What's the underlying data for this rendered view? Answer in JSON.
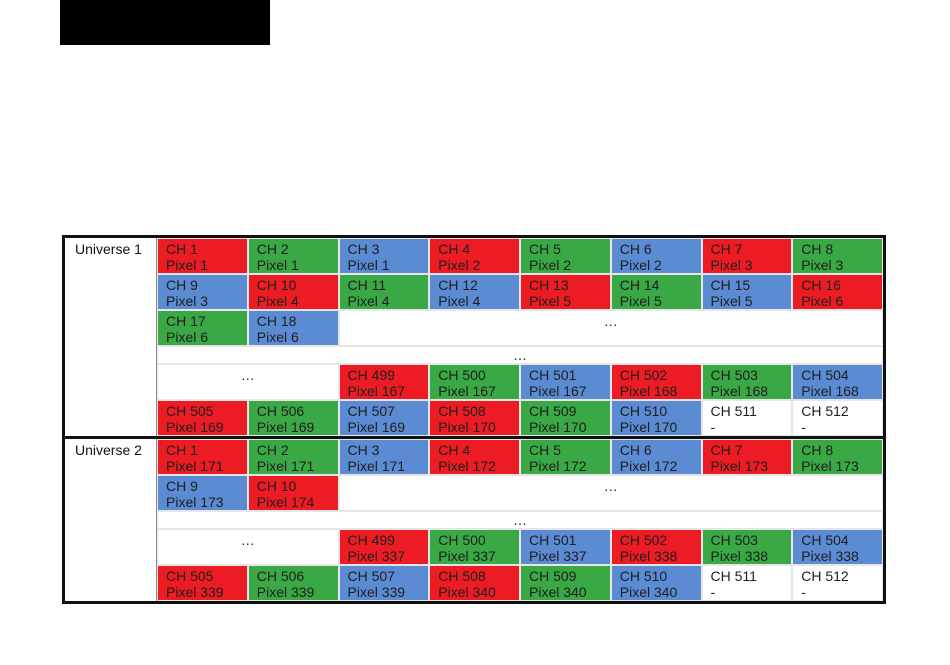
{
  "universes": [
    {
      "label": "Universe 1",
      "rows": [
        {
          "cells": [
            {
              "ch": "CH 1",
              "pixel": "Pixel 1",
              "color": "#ed1c24"
            },
            {
              "ch": "CH 2",
              "pixel": "Pixel 1",
              "color": "#39a845"
            },
            {
              "ch": "CH 3",
              "pixel": "Pixel 1",
              "color": "#5b8bd2"
            },
            {
              "ch": "CH 4",
              "pixel": "Pixel 2",
              "color": "#ed1c24"
            },
            {
              "ch": "CH 5",
              "pixel": "Pixel 2",
              "color": "#39a845"
            },
            {
              "ch": "CH 6",
              "pixel": "Pixel 2",
              "color": "#5b8bd2"
            },
            {
              "ch": "CH 7",
              "pixel": "Pixel 3",
              "color": "#ed1c24"
            },
            {
              "ch": "CH 8",
              "pixel": "Pixel 3",
              "color": "#39a845"
            }
          ]
        },
        {
          "cells": [
            {
              "ch": "CH 9",
              "pixel": "Pixel 3",
              "color": "#5b8bd2"
            },
            {
              "ch": "CH 10",
              "pixel": "Pixel 4",
              "color": "#ed1c24"
            },
            {
              "ch": "CH 11",
              "pixel": "Pixel 4",
              "color": "#39a845"
            },
            {
              "ch": "CH 12",
              "pixel": "Pixel 4",
              "color": "#5b8bd2"
            },
            {
              "ch": "CH 13",
              "pixel": "Pixel 5",
              "color": "#ed1c24"
            },
            {
              "ch": "CH 14",
              "pixel": "Pixel 5",
              "color": "#39a845"
            },
            {
              "ch": "CH 15",
              "pixel": "Pixel 5",
              "color": "#5b8bd2"
            },
            {
              "ch": "CH 16",
              "pixel": "Pixel 6",
              "color": "#ed1c24"
            }
          ]
        },
        {
          "cells": [
            {
              "ch": "CH 17",
              "pixel": "Pixel 6",
              "color": "#39a845"
            },
            {
              "ch": "CH 18",
              "pixel": "Pixel 6",
              "color": "#5b8bd2"
            },
            {
              "text": "…",
              "span": 6
            }
          ]
        },
        {
          "short": true,
          "cells": [
            {
              "text": "…",
              "span": 8
            }
          ]
        },
        {
          "cells": [
            {
              "text": "…",
              "span": 2
            },
            {
              "ch": "CH 499",
              "pixel": "Pixel 167",
              "color": "#ed1c24"
            },
            {
              "ch": "CH 500",
              "pixel": "Pixel 167",
              "color": "#39a845"
            },
            {
              "ch": "CH 501",
              "pixel": "Pixel 167",
              "color": "#5b8bd2"
            },
            {
              "ch": "CH 502",
              "pixel": "Pixel 168",
              "color": "#ed1c24"
            },
            {
              "ch": "CH 503",
              "pixel": "Pixel 168",
              "color": "#39a845"
            },
            {
              "ch": "CH 504",
              "pixel": "Pixel 168",
              "color": "#5b8bd2"
            }
          ]
        },
        {
          "cells": [
            {
              "ch": "CH 505",
              "pixel": "Pixel 169",
              "color": "#ed1c24"
            },
            {
              "ch": "CH 506",
              "pixel": "Pixel 169",
              "color": "#39a845"
            },
            {
              "ch": "CH 507",
              "pixel": "Pixel 169",
              "color": "#5b8bd2"
            },
            {
              "ch": "CH 508",
              "pixel": "Pixel 170",
              "color": "#ed1c24"
            },
            {
              "ch": "CH 509",
              "pixel": "Pixel 170",
              "color": "#39a845"
            },
            {
              "ch": "CH 510",
              "pixel": "Pixel 170",
              "color": "#5b8bd2"
            },
            {
              "ch": "CH 511",
              "pixel": "-",
              "color": "#ffffff"
            },
            {
              "ch": "CH 512",
              "pixel": "-",
              "color": "#ffffff"
            }
          ]
        }
      ]
    },
    {
      "label": "Universe 2",
      "rows": [
        {
          "cells": [
            {
              "ch": "CH 1",
              "pixel": "Pixel 171",
              "color": "#ed1c24"
            },
            {
              "ch": "CH 2",
              "pixel": "Pixel 171",
              "color": "#39a845"
            },
            {
              "ch": "CH 3",
              "pixel": "Pixel 171",
              "color": "#5b8bd2"
            },
            {
              "ch": "CH 4",
              "pixel": "Pixel 172",
              "color": "#ed1c24"
            },
            {
              "ch": "CH 5",
              "pixel": "Pixel 172",
              "color": "#39a845"
            },
            {
              "ch": "CH 6",
              "pixel": "Pixel 172",
              "color": "#5b8bd2"
            },
            {
              "ch": "CH 7",
              "pixel": "Pixel 173",
              "color": "#ed1c24"
            },
            {
              "ch": "CH 8",
              "pixel": "Pixel 173",
              "color": "#39a845"
            }
          ]
        },
        {
          "cells": [
            {
              "ch": "CH 9",
              "pixel": "Pixel 173",
              "color": "#5b8bd2"
            },
            {
              "ch": "CH 10",
              "pixel": "Pixel 174",
              "color": "#ed1c24"
            },
            {
              "text": "…",
              "span": 6
            }
          ]
        },
        {
          "short": true,
          "cells": [
            {
              "text": "…",
              "span": 8
            }
          ]
        },
        {
          "cells": [
            {
              "text": "…",
              "span": 2
            },
            {
              "ch": "CH 499",
              "pixel": "Pixel 337",
              "color": "#ed1c24"
            },
            {
              "ch": "CH 500",
              "pixel": "Pixel 337",
              "color": "#39a845"
            },
            {
              "ch": "CH 501",
              "pixel": "Pixel 337",
              "color": "#5b8bd2"
            },
            {
              "ch": "CH 502",
              "pixel": "Pixel 338",
              "color": "#ed1c24"
            },
            {
              "ch": "CH 503",
              "pixel": "Pixel 338",
              "color": "#39a845"
            },
            {
              "ch": "CH 504",
              "pixel": "Pixel 338",
              "color": "#5b8bd2"
            }
          ]
        },
        {
          "cells": [
            {
              "ch": "CH 505",
              "pixel": "Pixel 339",
              "color": "#ed1c24"
            },
            {
              "ch": "CH 506",
              "pixel": "Pixel 339",
              "color": "#39a845"
            },
            {
              "ch": "CH 507",
              "pixel": "Pixel 339",
              "color": "#5b8bd2"
            },
            {
              "ch": "CH 508",
              "pixel": "Pixel 340",
              "color": "#ed1c24"
            },
            {
              "ch": "CH 509",
              "pixel": "Pixel 340",
              "color": "#39a845"
            },
            {
              "ch": "CH 510",
              "pixel": "Pixel 340",
              "color": "#5b8bd2"
            },
            {
              "ch": "CH 511",
              "pixel": "-",
              "color": "#ffffff"
            },
            {
              "ch": "CH 512",
              "pixel": "-",
              "color": "#ffffff"
            }
          ]
        }
      ]
    }
  ]
}
